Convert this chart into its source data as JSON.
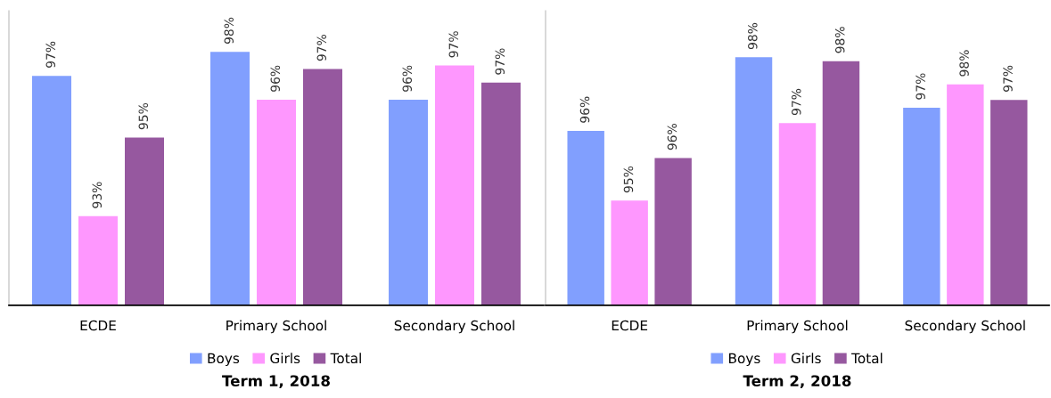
{
  "chart_data": [
    {
      "type": "bar",
      "title": "Term 1, 2018",
      "categories": [
        "ECDE",
        "Primary School",
        "Secondary School"
      ],
      "ylim": [
        90.4,
        99.0
      ],
      "tick_labels": "x",
      "legend": "bottom",
      "series": [
        {
          "name": "Boys",
          "color": "#819ffe",
          "values": [
            97.1,
            97.8,
            96.4
          ],
          "value_labels": [
            "97%",
            "98%",
            "96%"
          ]
        },
        {
          "name": "Girls",
          "color": "#fe97fe",
          "values": [
            93.0,
            96.4,
            97.4
          ],
          "value_labels": [
            "93%",
            "96%",
            "97%"
          ]
        },
        {
          "name": "Total",
          "color": "#96589f",
          "values": [
            95.3,
            97.3,
            96.9
          ],
          "value_labels": [
            "95%",
            "97%",
            "97%"
          ]
        }
      ]
    },
    {
      "type": "bar",
      "title": "Term 2, 2018",
      "categories": [
        "ECDE",
        "Primary School",
        "Secondary School"
      ],
      "ylim": [
        91.9,
        99.5
      ],
      "tick_labels": "x",
      "legend": "bottom",
      "series": [
        {
          "name": "Boys",
          "color": "#819ffe",
          "values": [
            96.4,
            98.3,
            97.0
          ],
          "value_labels": [
            "96%",
            "98%",
            "97%"
          ]
        },
        {
          "name": "Girls",
          "color": "#fe97fe",
          "values": [
            94.6,
            96.6,
            97.6
          ],
          "value_labels": [
            "95%",
            "97%",
            "98%"
          ]
        },
        {
          "name": "Total",
          "color": "#96589f",
          "values": [
            95.7,
            98.2,
            97.2
          ],
          "value_labels": [
            "96%",
            "98%",
            "97%"
          ]
        }
      ]
    }
  ]
}
